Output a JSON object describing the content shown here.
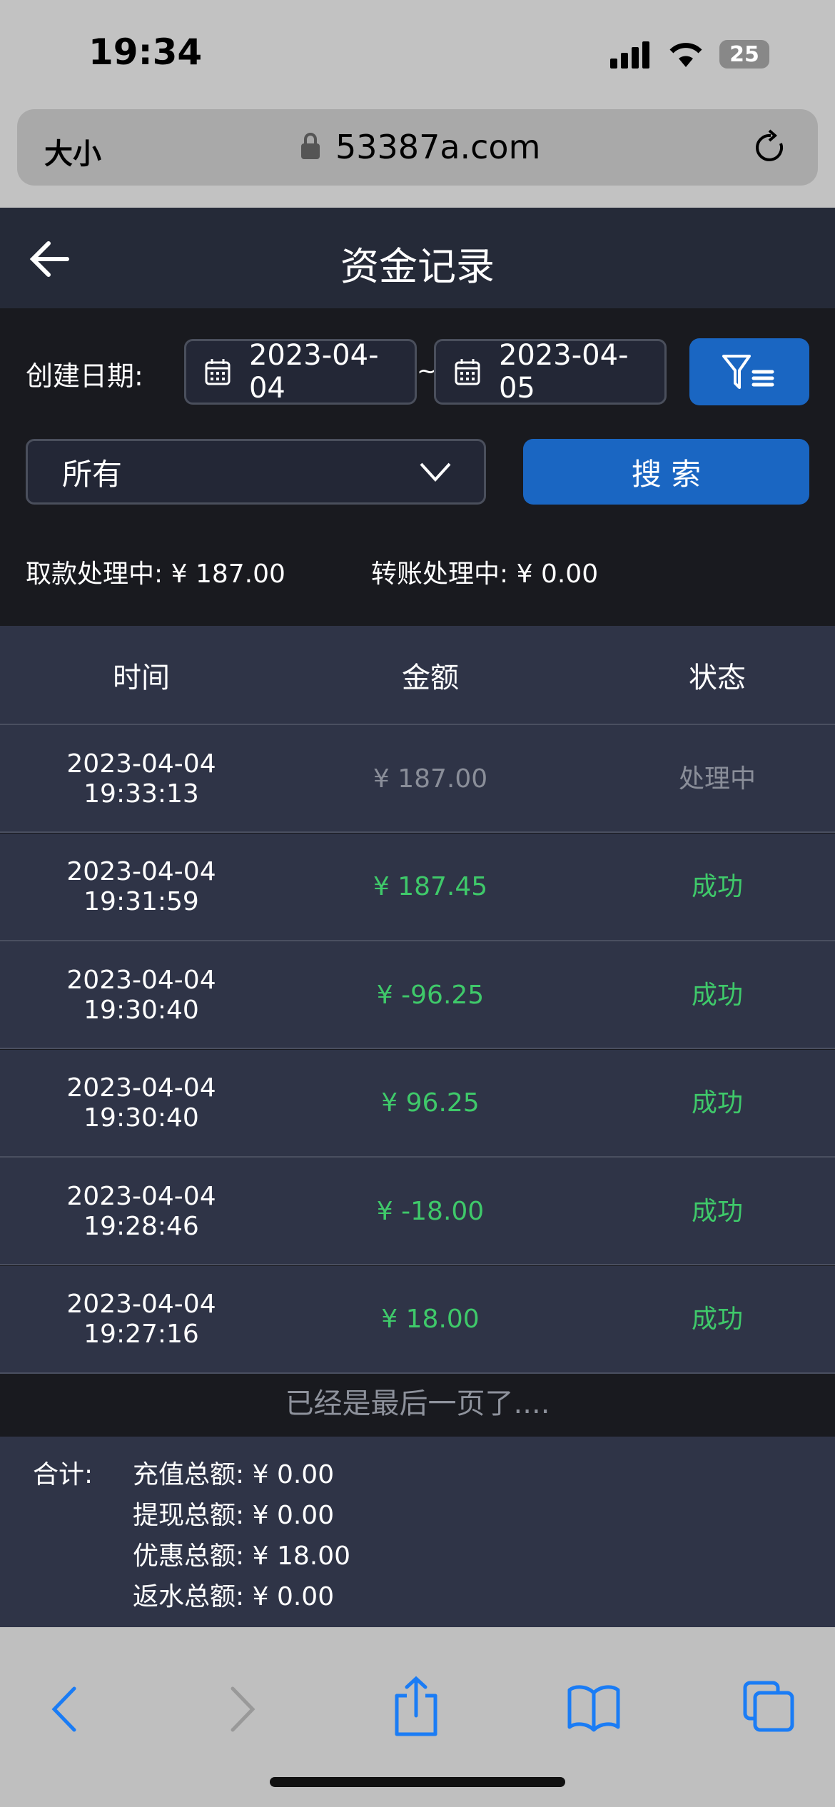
{
  "status_bar": {
    "time": "19:34",
    "battery": "25"
  },
  "browser": {
    "text_size_label": "大小",
    "url": "53387a.com",
    "icons": [
      "lock-icon",
      "reload-icon"
    ]
  },
  "header": {
    "title": "资金记录",
    "back_icon": "arrow-left-icon"
  },
  "filters": {
    "date_label": "创建日期:",
    "start_date": "2023-04-04",
    "separator": "~",
    "end_date": "2023-04-05",
    "type_select": "所有",
    "search_label": "搜 索"
  },
  "processing": {
    "withdraw_label": "取款处理中:",
    "withdraw_value": "¥ 187.00",
    "transfer_label": "转账处理中:",
    "transfer_value": "¥ 0.00"
  },
  "table": {
    "headers": [
      "时间",
      "金额",
      "状态"
    ],
    "rows": [
      {
        "date": "2023-04-04",
        "time": "19:33:13",
        "amount": "¥ 187.00",
        "status": "处理中",
        "state": "pending"
      },
      {
        "date": "2023-04-04",
        "time": "19:31:59",
        "amount": "¥ 187.45",
        "status": "成功",
        "state": "success"
      },
      {
        "date": "2023-04-04",
        "time": "19:30:40",
        "amount": "¥ -96.25",
        "status": "成功",
        "state": "success"
      },
      {
        "date": "2023-04-04",
        "time": "19:30:40",
        "amount": "¥ 96.25",
        "status": "成功",
        "state": "success"
      },
      {
        "date": "2023-04-04",
        "time": "19:28:46",
        "amount": "¥ -18.00",
        "status": "成功",
        "state": "success"
      },
      {
        "date": "2023-04-04",
        "time": "19:27:16",
        "amount": "¥ 18.00",
        "status": "成功",
        "state": "success"
      }
    ]
  },
  "last_page": "已经是最后一页了....",
  "summary": {
    "label": "合计:",
    "items": [
      {
        "label": "充值总额:",
        "value": "¥ 0.00"
      },
      {
        "label": "提现总额:",
        "value": "¥ 0.00"
      },
      {
        "label": "优惠总额:",
        "value": "¥ 18.00"
      },
      {
        "label": "返水总额:",
        "value": "¥ 0.00"
      }
    ]
  },
  "colors": {
    "success": "#3fc96a",
    "pending": "#8a8e99",
    "accent": "#1a66c2"
  }
}
